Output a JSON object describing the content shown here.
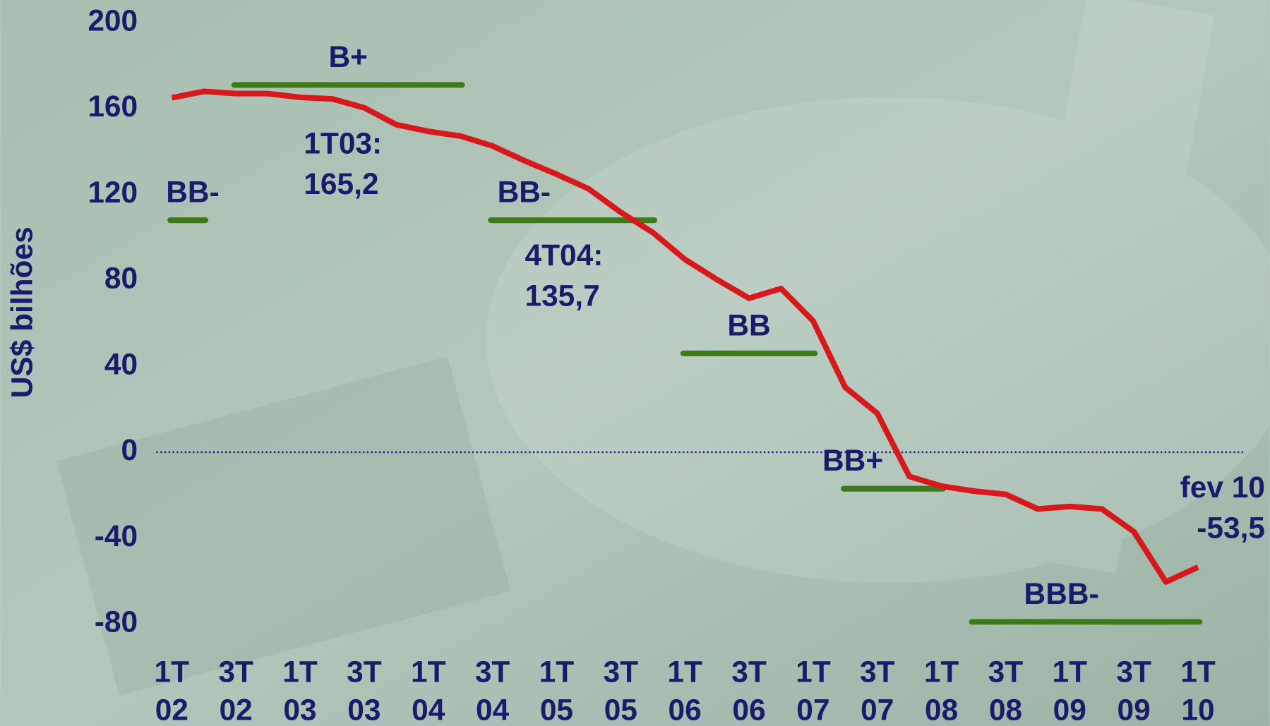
{
  "chart_data": {
    "type": "line",
    "y_label": "US$ bilhões",
    "categories": [
      "1T 02",
      null,
      "3T 02",
      null,
      "1T 03",
      null,
      "3T 03",
      null,
      "1T 04",
      null,
      "3T 04",
      null,
      "1T 05",
      null,
      "3T 05",
      null,
      "1T 06",
      null,
      "3T 06",
      null,
      "1T 07",
      null,
      "3T 07",
      null,
      "1T 08",
      null,
      "3T 08",
      null,
      "1T 09",
      null,
      "3T 09",
      null,
      "1T 10"
    ],
    "series": [
      {
        "name": "US$ bilhões",
        "color": "#d7191c",
        "values": [
          165,
          168,
          167,
          167,
          165.2,
          164.5,
          160.4,
          152.5,
          149.4,
          147.2,
          142.6,
          135.7,
          129.4,
          122.6,
          111.7,
          102.3,
          89.8,
          80.4,
          71.7,
          76.2,
          61.1,
          30.2,
          18.1,
          -11.3,
          -15.8,
          -18.1,
          -19.6,
          -26.4,
          -25.3,
          -26.4,
          -37,
          -60.4,
          -53.5
        ]
      }
    ],
    "ylim": [
      -80,
      200
    ],
    "yticks": [
      200,
      160,
      120,
      80,
      40,
      0,
      -40,
      -80
    ],
    "zero_line": true,
    "ratings": [
      {
        "label": "BB-",
        "start": 0,
        "end": 1,
        "level": 108
      },
      {
        "label": "B+",
        "start": 2,
        "end": 9,
        "level": 171
      },
      {
        "label": "BB-",
        "start": 10,
        "end": 15,
        "level": 108
      },
      {
        "label": "BB",
        "start": 16,
        "end": 20,
        "level": 46
      },
      {
        "label": "BB+",
        "start": 21,
        "end": 24,
        "level": -17
      },
      {
        "label": "BBB-",
        "start": 25,
        "end": 32,
        "level": -79
      }
    ],
    "ratings_color": "#3d7a1c",
    "annotations": [
      {
        "lines": [
          "1T03:",
          "165,2"
        ]
      },
      {
        "lines": [
          "4T04:",
          "135,7"
        ]
      },
      {
        "lines": [
          "fev 10",
          "-53,5"
        ]
      }
    ]
  }
}
